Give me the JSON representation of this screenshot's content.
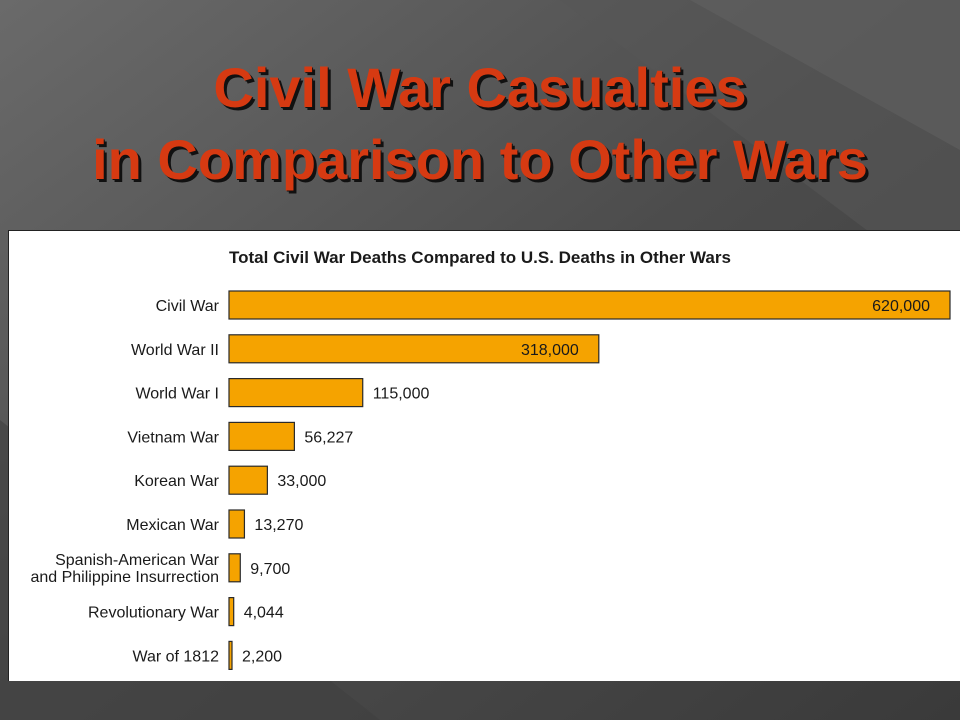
{
  "slide": {
    "title_line1": "Civil War Casualties",
    "title_line2": "in Comparison to Other Wars"
  },
  "colors": {
    "bar_fill": "#f5a300",
    "bar_stroke": "#2a2a2a",
    "title_red": "#d63a12",
    "background_dark": "#4a4a4a"
  },
  "chart_data": {
    "type": "bar",
    "orientation": "horizontal",
    "title": "Total Civil War Deaths Compared to U.S. Deaths in Other Wars",
    "xlabel": "",
    "ylabel": "",
    "xlim": [
      0,
      620000
    ],
    "grid": false,
    "legend": "none",
    "categories": [
      [
        "Civil War"
      ],
      [
        "World War II"
      ],
      [
        "World War I"
      ],
      [
        "Vietnam War"
      ],
      [
        "Korean War"
      ],
      [
        "Mexican War"
      ],
      [
        "Spanish-American War",
        "and Philippine Insurrection"
      ],
      [
        "Revolutionary War"
      ],
      [
        "War of 1812"
      ]
    ],
    "values": [
      620000,
      318000,
      115000,
      56227,
      33000,
      13270,
      9700,
      4044,
      2200
    ],
    "data_labels": [
      "620,000",
      "318,000",
      "115,000",
      "56,227",
      "33,000",
      "13,270",
      "9,700",
      "4,044",
      "2,200"
    ]
  }
}
